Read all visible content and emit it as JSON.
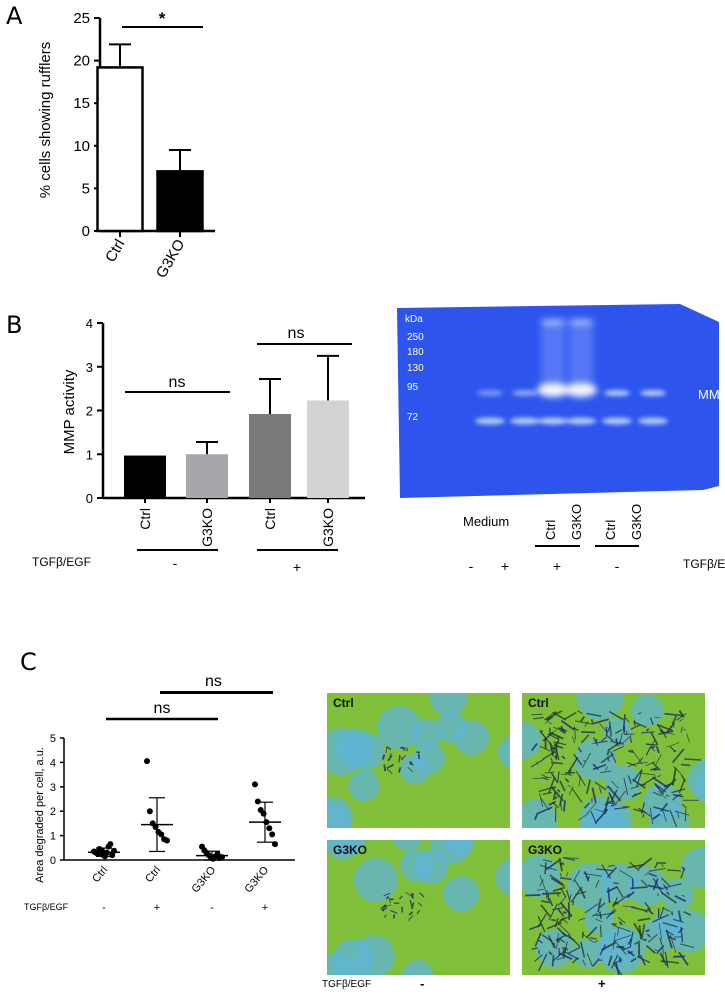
{
  "panels": {
    "A": "A",
    "B": "B",
    "C": "C"
  },
  "panelA": {
    "ylabel": "% cells showing rufflers",
    "significance": "*",
    "chart_data": {
      "type": "bar",
      "categories": [
        "Ctrl",
        "G3KO"
      ],
      "values": [
        19.2,
        7.0
      ],
      "errors": [
        2.7,
        2.5
      ],
      "fills": [
        "#ffffff",
        "#000000"
      ],
      "ylim": [
        0,
        25
      ],
      "yticks": [
        0,
        5,
        10,
        15,
        20,
        25
      ],
      "ylabel": "% cells showing rufflers"
    }
  },
  "panelB": {
    "ylabel": "MMP activity",
    "ns_labels": [
      "ns",
      "ns"
    ],
    "treatment_label": "TGFβ/EGF",
    "treatment_values": [
      "-",
      "+"
    ],
    "chart_data": {
      "type": "bar",
      "categories": [
        "Ctrl",
        "G3KO",
        "Ctrl",
        "G3KO"
      ],
      "values": [
        0.97,
        1.0,
        1.92,
        2.23
      ],
      "errors": [
        0,
        0.28,
        0.8,
        1.02
      ],
      "fills": [
        "#000000",
        "#a6a6ab",
        "#7a7a7a",
        "#d3d3d3"
      ],
      "ylim": [
        0,
        4
      ],
      "yticks": [
        0,
        1,
        2,
        3,
        4
      ],
      "ylabel": "MMP activity"
    }
  },
  "gel": {
    "marker_unit": "kDa",
    "markers": [
      "250",
      "180",
      "130",
      "95",
      "72"
    ],
    "band_label": "MMP",
    "medium_label": "Medium",
    "lane_labels": [
      "Ctrl",
      "G3KO",
      "Ctrl",
      "G3KO"
    ],
    "signs": [
      "-",
      "+",
      "+",
      "-"
    ],
    "treatment_label": "TGFβ/EGF",
    "background_color": "#2d55ee"
  },
  "panelC": {
    "ylabel": "Area degraded per cell, a.u.",
    "ns_labels": [
      "ns",
      "ns"
    ],
    "treatment_label": "TGFβ/EGF",
    "signs": [
      "-",
      "+",
      "-",
      "+"
    ],
    "chart_data": {
      "type": "scatter",
      "categories": [
        "Ctrl",
        "Ctrl",
        "G3KO",
        "G3KO"
      ],
      "series": [
        {
          "values": [
            0.35,
            0.3,
            0.25,
            0.45,
            0.4,
            0.2,
            0.15,
            0.3,
            0.55,
            0.65,
            0.2,
            0.38
          ]
        },
        {
          "values": [
            4.05,
            2.0,
            1.5,
            1.35,
            1.15,
            1.05,
            0.85,
            0.8
          ]
        },
        {
          "values": [
            0.55,
            0.4,
            0.3,
            0.2,
            0.1,
            0.05,
            0.15,
            0.25,
            0.08,
            0.12
          ]
        },
        {
          "values": [
            3.1,
            2.4,
            2.05,
            1.9,
            1.55,
            1.3,
            1.05,
            0.65
          ]
        }
      ],
      "means": [
        0.32,
        1.45,
        0.18,
        1.55
      ],
      "sd": [
        0.17,
        1.1,
        0.18,
        0.82
      ],
      "ylim": [
        0,
        5
      ],
      "yticks": [
        0,
        1,
        2,
        3,
        4,
        5
      ],
      "ylabel": "Area degraded per cell, a.u."
    },
    "micrographs": [
      "Ctrl",
      "Ctrl",
      "G3KO",
      "G3KO"
    ],
    "micro_treatment_label": "TGFβ/EGF",
    "micro_signs": [
      "-",
      "+"
    ]
  }
}
